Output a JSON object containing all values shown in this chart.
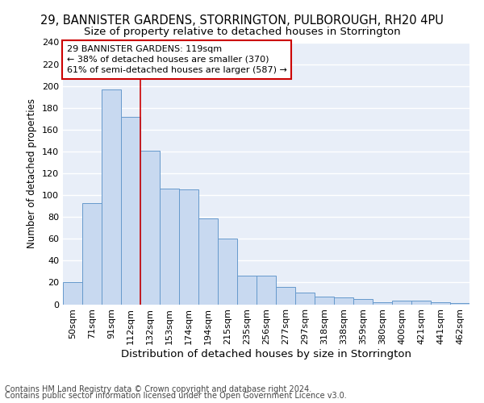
{
  "title": "29, BANNISTER GARDENS, STORRINGTON, PULBOROUGH, RH20 4PU",
  "subtitle": "Size of property relative to detached houses in Storrington",
  "xlabel": "Distribution of detached houses by size in Storrington",
  "ylabel": "Number of detached properties",
  "categories": [
    "50sqm",
    "71sqm",
    "91sqm",
    "112sqm",
    "132sqm",
    "153sqm",
    "174sqm",
    "194sqm",
    "215sqm",
    "235sqm",
    "256sqm",
    "277sqm",
    "297sqm",
    "318sqm",
    "338sqm",
    "359sqm",
    "380sqm",
    "400sqm",
    "421sqm",
    "441sqm",
    "462sqm"
  ],
  "values": [
    20,
    93,
    197,
    172,
    141,
    106,
    105,
    79,
    60,
    26,
    26,
    16,
    11,
    7,
    6,
    5,
    2,
    3,
    3,
    2,
    1
  ],
  "bar_color": "#c8d9f0",
  "bar_edge_color": "#6699cc",
  "background_color": "#e8eef8",
  "ylim": [
    0,
    240
  ],
  "yticks": [
    0,
    20,
    40,
    60,
    80,
    100,
    120,
    140,
    160,
    180,
    200,
    220,
    240
  ],
  "property_label": "29 BANNISTER GARDENS: 119sqm",
  "smaller_pct": "38%",
  "smaller_count": 370,
  "larger_pct": "61%",
  "larger_count": 587,
  "annotation_box_color": "#ffffff",
  "annotation_box_edge": "#cc0000",
  "vline_color": "#cc0000",
  "footer1": "Contains HM Land Registry data © Crown copyright and database right 2024.",
  "footer2": "Contains public sector information licensed under the Open Government Licence v3.0.",
  "title_fontsize": 10.5,
  "subtitle_fontsize": 9.5,
  "xlabel_fontsize": 9.5,
  "ylabel_fontsize": 8.5,
  "tick_fontsize": 8,
  "annot_fontsize": 8,
  "footer_fontsize": 7
}
